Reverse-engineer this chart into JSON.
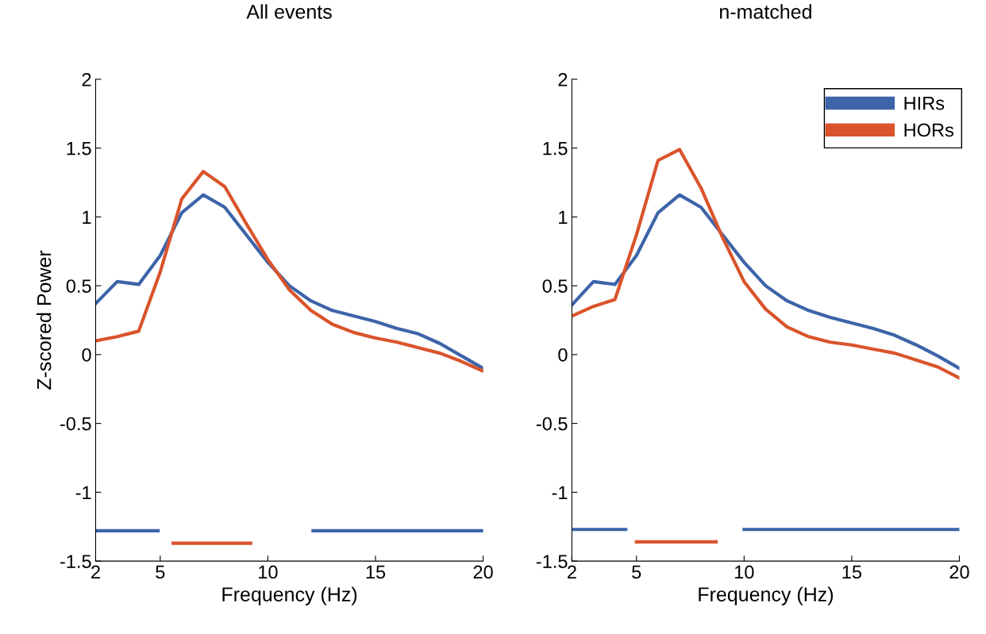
{
  "chart_data": [
    {
      "type": "line",
      "title": "All events",
      "xlabel": "Frequency (Hz)",
      "ylabel": "Z-scored Power",
      "xlim": [
        2,
        20
      ],
      "xticks": [
        2,
        5,
        10,
        15,
        20
      ],
      "ylim": [
        -1.5,
        2
      ],
      "yticks": [
        -1.5,
        -1,
        -0.5,
        0,
        0.5,
        1,
        1.5,
        2
      ],
      "grid": false,
      "legend": false,
      "x": [
        2,
        3,
        4,
        5,
        6,
        7,
        8,
        9,
        10,
        11,
        12,
        13,
        14,
        15,
        16,
        17,
        18,
        19,
        20
      ],
      "series": [
        {
          "color": "#3d64a9",
          "values": [
            0.37,
            0.53,
            0.51,
            0.72,
            1.03,
            1.16,
            1.07,
            0.87,
            0.67,
            0.5,
            0.39,
            0.32,
            0.28,
            0.24,
            0.19,
            0.15,
            0.08,
            -0.01,
            -0.1
          ]
        },
        {
          "color": "#d9542b",
          "values": [
            0.1,
            0.13,
            0.17,
            0.6,
            1.13,
            1.33,
            1.22,
            0.95,
            0.69,
            0.47,
            0.32,
            0.22,
            0.16,
            0.12,
            0.09,
            0.05,
            0.01,
            -0.05,
            -0.12
          ]
        },
        {
          "color": "#3d64a9",
          "x": [
            2,
            4.9
          ],
          "values": [
            -1.28,
            -1.28
          ]
        },
        {
          "color": "#3d64a9",
          "x": [
            12.1,
            20
          ],
          "values": [
            -1.28,
            -1.28
          ]
        },
        {
          "color": "#d9542b",
          "x": [
            5.6,
            9.2
          ],
          "values": [
            -1.37,
            -1.37
          ]
        }
      ]
    },
    {
      "type": "line",
      "title": "n-matched",
      "xlabel": "Frequency (Hz)",
      "xlim": [
        2,
        20
      ],
      "xticks": [
        2,
        5,
        10,
        15,
        20
      ],
      "ylim": [
        -1.5,
        2
      ],
      "yticks": [
        -1.5,
        -1,
        -0.5,
        0,
        0.5,
        1,
        1.5,
        2
      ],
      "grid": false,
      "legend": "top right",
      "x": [
        2,
        3,
        4,
        5,
        6,
        7,
        8,
        9,
        10,
        11,
        12,
        13,
        14,
        15,
        16,
        17,
        18,
        19,
        20
      ],
      "series": [
        {
          "name": "HIRs",
          "color": "#3d64a9",
          "values": [
            0.36,
            0.53,
            0.51,
            0.72,
            1.03,
            1.16,
            1.07,
            0.87,
            0.67,
            0.5,
            0.39,
            0.32,
            0.27,
            0.23,
            0.19,
            0.14,
            0.07,
            -0.01,
            -0.1
          ]
        },
        {
          "name": "HORs",
          "color": "#d9542b",
          "values": [
            0.28,
            0.35,
            0.4,
            0.87,
            1.41,
            1.49,
            1.21,
            0.85,
            0.53,
            0.33,
            0.2,
            0.13,
            0.09,
            0.07,
            0.04,
            0.01,
            -0.04,
            -0.09,
            -0.17
          ]
        },
        {
          "color": "#3d64a9",
          "x": [
            2,
            4.5
          ],
          "values": [
            -1.27,
            -1.27
          ]
        },
        {
          "color": "#3d64a9",
          "x": [
            10,
            20
          ],
          "values": [
            -1.27,
            -1.27
          ]
        },
        {
          "color": "#d9542b",
          "x": [
            5,
            8.7
          ],
          "values": [
            -1.36,
            -1.36
          ]
        }
      ]
    }
  ]
}
